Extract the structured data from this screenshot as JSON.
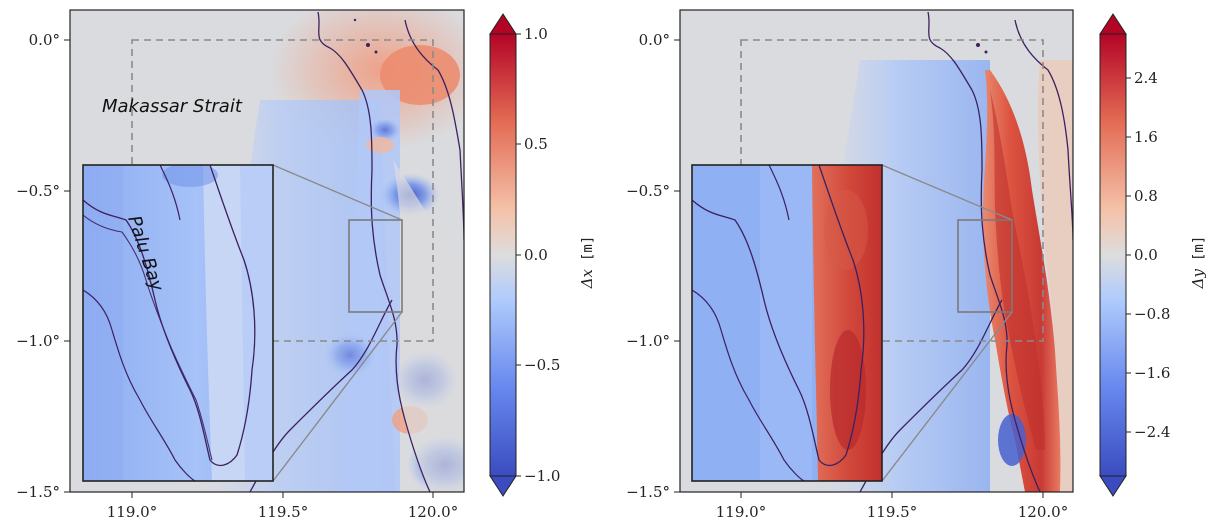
{
  "shared_axes": {
    "lat_ticks": [
      "0.0°",
      "−0.5°",
      "−1.0°",
      "−1.5°"
    ],
    "lon_ticks": [
      "119.0°",
      "119.5°",
      "120.0°"
    ]
  },
  "left_panel": {
    "label_strait": "Makassar Strait",
    "label_bay": "Palu Bay",
    "colorbar": {
      "label_symbol": "Δx",
      "label_unit": "[m]",
      "ticks": [
        "1.0",
        "0.5",
        "0.0",
        "−0.5",
        "−1.0"
      ],
      "range": [
        -1.0,
        1.0
      ]
    }
  },
  "right_panel": {
    "colorbar": {
      "label_symbol": "Δy",
      "label_unit": "[m]",
      "ticks": [
        "2.4",
        "1.6",
        "0.8",
        "0.0",
        "−0.8",
        "−1.6",
        "−2.4"
      ],
      "range": [
        -3.0,
        3.0
      ]
    }
  },
  "colors": {
    "land": "#d9dadd",
    "ocean_neutral": "#dcdcde",
    "positive_strong": "#b40426",
    "positive_mid": "#e8836a",
    "negative_mid": "#7da0f0",
    "negative_strong": "#3b4cc0",
    "coastline": "#3c2160",
    "box": "#8a8a8a"
  }
}
